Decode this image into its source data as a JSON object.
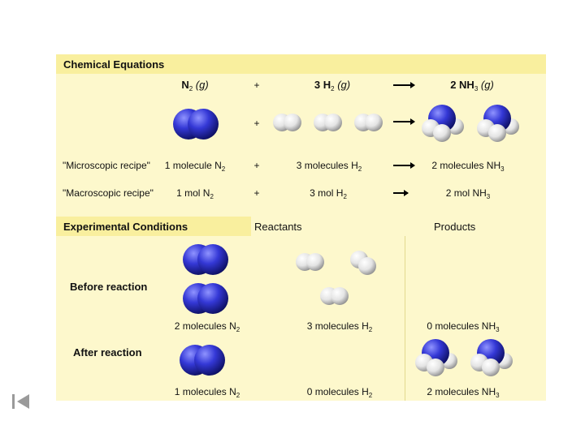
{
  "header": {
    "title": "Chemical Equations"
  },
  "equation": {
    "n2": "N",
    "n2_sub": "2",
    "n2_phase": "(g)",
    "plus": "+",
    "h2": "3 H",
    "h2_sub": "2",
    "h2_phase": "(g)",
    "nh3": "2 NH",
    "nh3_sub": "3",
    "nh3_phase": "(g)"
  },
  "models_row": {
    "plus": "+"
  },
  "microscopic": {
    "label": "\"Microscopic recipe\"",
    "n2": "1 molecule N",
    "n2_sub": "2",
    "plus": "+",
    "h2": "3 molecules H",
    "h2_sub": "2",
    "nh3": "2 molecules NH",
    "nh3_sub": "3"
  },
  "macroscopic": {
    "label": "\"Macroscopic recipe\"",
    "n2": "1 mol N",
    "n2_sub": "2",
    "plus": "+",
    "h2": "3 mol H",
    "h2_sub": "2",
    "nh3": "2 mol NH",
    "nh3_sub": "3"
  },
  "conditions": {
    "title": "Experimental Conditions",
    "reactants": "Reactants",
    "products": "Products"
  },
  "before": {
    "label": "Before reaction",
    "n2": "2 molecules N",
    "n2_sub": "2",
    "h2": "3 molecules H",
    "h2_sub": "2",
    "nh3": "0 molecules NH",
    "nh3_sub": "3"
  },
  "after": {
    "label": "After reaction",
    "n2": "1 molecules N",
    "n2_sub": "2",
    "h2": "0 molecules H",
    "h2_sub": "2",
    "nh3": "2 molecules NH",
    "nh3_sub": "3"
  },
  "colors": {
    "panel": "#fdf8cc",
    "bar": "#f9ef9e",
    "nitrogen": "#2b2fc8",
    "hydrogen": "#e6e6e6"
  },
  "icons": {
    "nav": "back-to-start-icon"
  }
}
